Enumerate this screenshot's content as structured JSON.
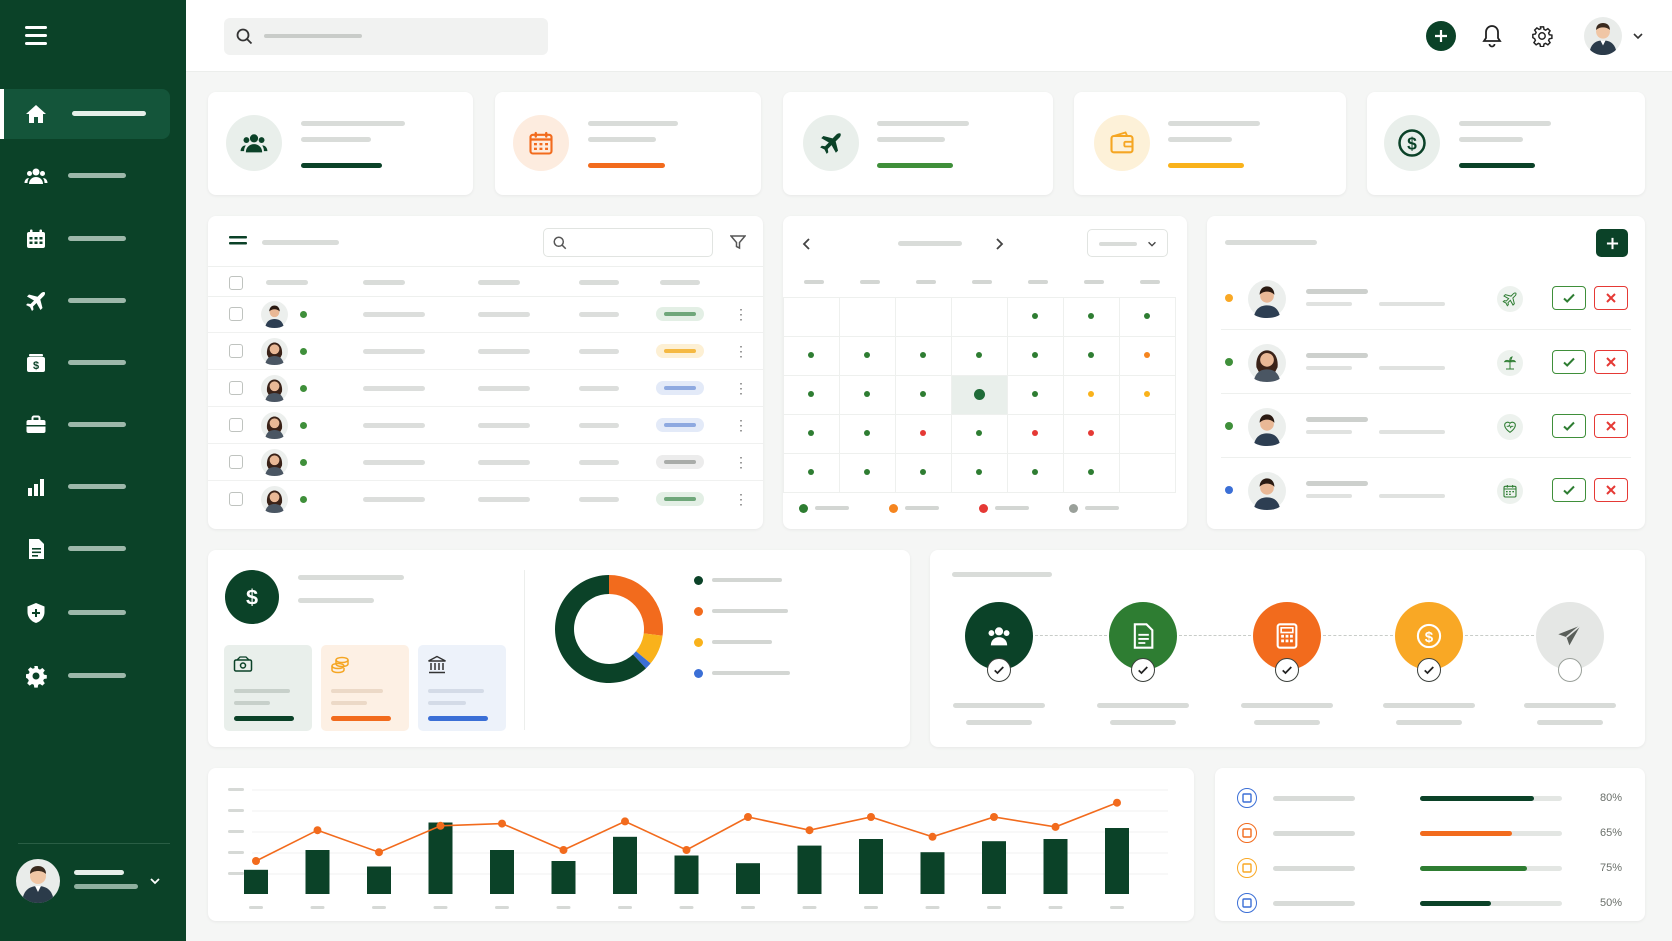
{
  "app": {
    "title": ""
  },
  "colors": {
    "primary": "#0b4228",
    "orange": "#f26b1d",
    "yellow": "#f9b21b",
    "green": "#3f8f3a",
    "red": "#e03131",
    "blue": "#3b6fd6",
    "grey": "#9aa09a"
  },
  "sidebar": {
    "items": [
      {
        "icon": "home-icon",
        "active": true
      },
      {
        "icon": "users-icon",
        "active": false
      },
      {
        "icon": "calendar-icon",
        "active": false
      },
      {
        "icon": "plane-icon",
        "active": false
      },
      {
        "icon": "payroll-icon",
        "active": false
      },
      {
        "icon": "briefcase-icon",
        "active": false
      },
      {
        "icon": "chart-icon",
        "active": false
      },
      {
        "icon": "document-icon",
        "active": false
      },
      {
        "icon": "shield-icon",
        "active": false
      },
      {
        "icon": "gear-icon",
        "active": false
      }
    ]
  },
  "topbar": {
    "icons": [
      "search-icon",
      "add-icon",
      "bell-icon",
      "gear-icon",
      "avatar",
      "chevron-down-icon"
    ]
  },
  "stat_cards": [
    {
      "icon": "users-icon",
      "accent": "#0b4228"
    },
    {
      "icon": "calendar-icon",
      "accent": "#f26b1d"
    },
    {
      "icon": "plane-icon",
      "accent": "#3f8f3a"
    },
    {
      "icon": "wallet-icon",
      "accent": "#f9b21b"
    },
    {
      "icon": "dollar-icon",
      "accent": "#0b4228"
    }
  ],
  "employee_table": {
    "rows": [
      {
        "status": "#3f8f3a",
        "pill": "green"
      },
      {
        "status": "#3f8f3a",
        "pill": "yellow"
      },
      {
        "status": "#3f8f3a",
        "pill": "blue"
      },
      {
        "status": "#3f8f3a",
        "pill": "blue"
      },
      {
        "status": "#3f8f3a",
        "pill": "grey"
      },
      {
        "status": "#3f8f3a",
        "pill": "green"
      }
    ]
  },
  "calendar": {
    "legend": [
      "green",
      "orange",
      "red",
      "grey"
    ]
  },
  "requests": {
    "rows": [
      {
        "dot": "#f9a825",
        "type_icon": "plane-icon"
      },
      {
        "dot": "#3f8f3a",
        "type_icon": "palm-icon"
      },
      {
        "dot": "#3f8f3a",
        "type_icon": "heart-icon"
      },
      {
        "dot": "#3b6fd6",
        "type_icon": "calendar-icon"
      }
    ]
  },
  "payroll_summary": {
    "donut": [
      {
        "color": "#0b4228",
        "value": 0.62
      },
      {
        "color": "#f26b1d",
        "value": 0.27
      },
      {
        "color": "#f9b21b",
        "value": 0.09
      },
      {
        "color": "#3b6fd6",
        "value": 0.02
      }
    ]
  },
  "process_steps": [
    {
      "icon": "users-icon",
      "color": "#0b4228",
      "done": true
    },
    {
      "icon": "document-icon",
      "color": "#2e7d32",
      "done": true
    },
    {
      "icon": "calculator-icon",
      "color": "#f26b1d",
      "done": true
    },
    {
      "icon": "dollar-icon",
      "color": "#f9a825",
      "done": true
    },
    {
      "icon": "send-icon",
      "color": "#e5e7e5",
      "done": false
    }
  ],
  "progress": [
    {
      "pct": "80%",
      "value": 0.8,
      "color": "#0b4228",
      "icon_color": "#3b6fd6"
    },
    {
      "pct": "65%",
      "value": 0.65,
      "color": "#f26b1d",
      "icon_color": "#f26b1d"
    },
    {
      "pct": "75%",
      "value": 0.75,
      "color": "#2e7d32",
      "icon_color": "#f9a825"
    },
    {
      "pct": "50%",
      "value": 0.5,
      "color": "#0b4228",
      "icon_color": "#3b6fd6"
    }
  ],
  "chart_data": {
    "type": "bar",
    "categories": [
      "",
      "",
      "",
      "",
      "",
      "",
      "",
      "",
      "",
      "",
      "",
      "",
      "",
      "",
      ""
    ],
    "series": [
      {
        "type": "bar",
        "values": [
          22,
          40,
          25,
          65,
          40,
          30,
          52,
          35,
          28,
          44,
          50,
          38,
          48,
          50,
          60
        ]
      },
      {
        "type": "line",
        "values": [
          30,
          58,
          38,
          62,
          64,
          40,
          66,
          40,
          70,
          58,
          70,
          52,
          70,
          61,
          83
        ]
      }
    ],
    "ylim": [
      0,
      100
    ]
  }
}
